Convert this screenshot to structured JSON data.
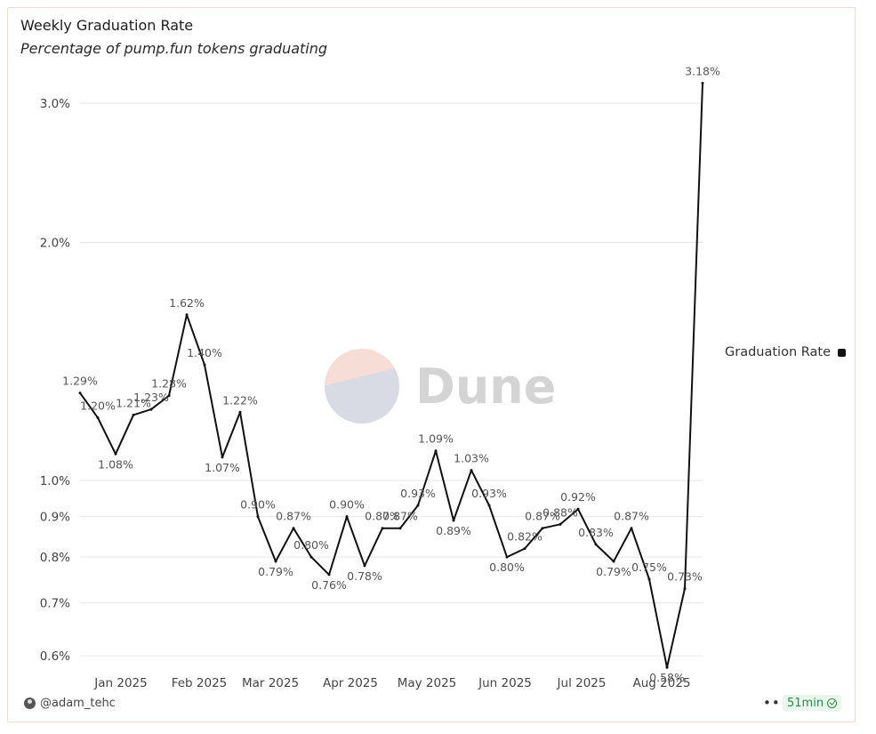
{
  "header": {
    "title": "Weekly Graduation Rate",
    "subtitle": "Percentage of pump.fun tokens graduating"
  },
  "legend": {
    "label": "Graduation Rate",
    "color": "#111111"
  },
  "watermark": {
    "text": "Dune"
  },
  "footer": {
    "user": "@adam_tehc",
    "refresh": "51min",
    "more": "•••"
  },
  "chart_data": {
    "type": "line",
    "title": "Weekly Graduation Rate",
    "subtitle": "Percentage of pump.fun tokens graduating",
    "xlabel": "",
    "ylabel": "",
    "y_scale": "log",
    "ylim": [
      0.58,
      3.4
    ],
    "grid": true,
    "legend_position": "right",
    "y_ticks": [
      {
        "value": 0.6,
        "label": "0.6%"
      },
      {
        "value": 0.7,
        "label": "0.7%"
      },
      {
        "value": 0.8,
        "label": "0.8%"
      },
      {
        "value": 0.9,
        "label": "0.9%"
      },
      {
        "value": 1.0,
        "label": "1.0%"
      },
      {
        "value": 2.0,
        "label": "2.0%"
      },
      {
        "value": 3.0,
        "label": "3.0%"
      }
    ],
    "x_ticks": [
      {
        "week": 2.3,
        "label": "Jan 2025"
      },
      {
        "week": 6.7,
        "label": "Feb 2025"
      },
      {
        "week": 10.7,
        "label": "Mar 2025"
      },
      {
        "week": 15.2,
        "label": "Apr 2025"
      },
      {
        "week": 19.5,
        "label": "May 2025"
      },
      {
        "week": 23.9,
        "label": "Jun 2025"
      },
      {
        "week": 28.2,
        "label": "Jul 2025"
      },
      {
        "week": 32.7,
        "label": "Aug 2025"
      }
    ],
    "series": [
      {
        "name": "Graduation Rate",
        "color": "#111111",
        "values": [
          1.29,
          1.2,
          1.08,
          1.21,
          1.23,
          1.28,
          1.62,
          1.4,
          1.07,
          1.22,
          0.9,
          0.79,
          0.87,
          0.8,
          0.76,
          0.9,
          0.78,
          0.87,
          0.87,
          0.93,
          1.09,
          0.89,
          1.03,
          0.93,
          0.8,
          0.82,
          0.87,
          0.88,
          0.92,
          0.83,
          0.79,
          0.87,
          0.75,
          0.58,
          0.73,
          3.18
        ],
        "labels": [
          "1.29%",
          "1.20%",
          "1.08%",
          "1.21%",
          "1.23%",
          "1.28%",
          "1.62%",
          "1.40%",
          "1.07%",
          "1.22%",
          "0.90%",
          "0.79%",
          "0.87%",
          "0.80%",
          "0.76%",
          "0.90%",
          "0.78%",
          "0.87%",
          "0.87%",
          "0.93%",
          "1.09%",
          "0.89%",
          "1.03%",
          "0.93%",
          "0.80%",
          "0.82%",
          "0.87%",
          "0.88%",
          "0.92%",
          "0.83%",
          "0.79%",
          "0.87%",
          "0.75%",
          "0.58%",
          "0.73%",
          "3.18%"
        ]
      }
    ]
  }
}
